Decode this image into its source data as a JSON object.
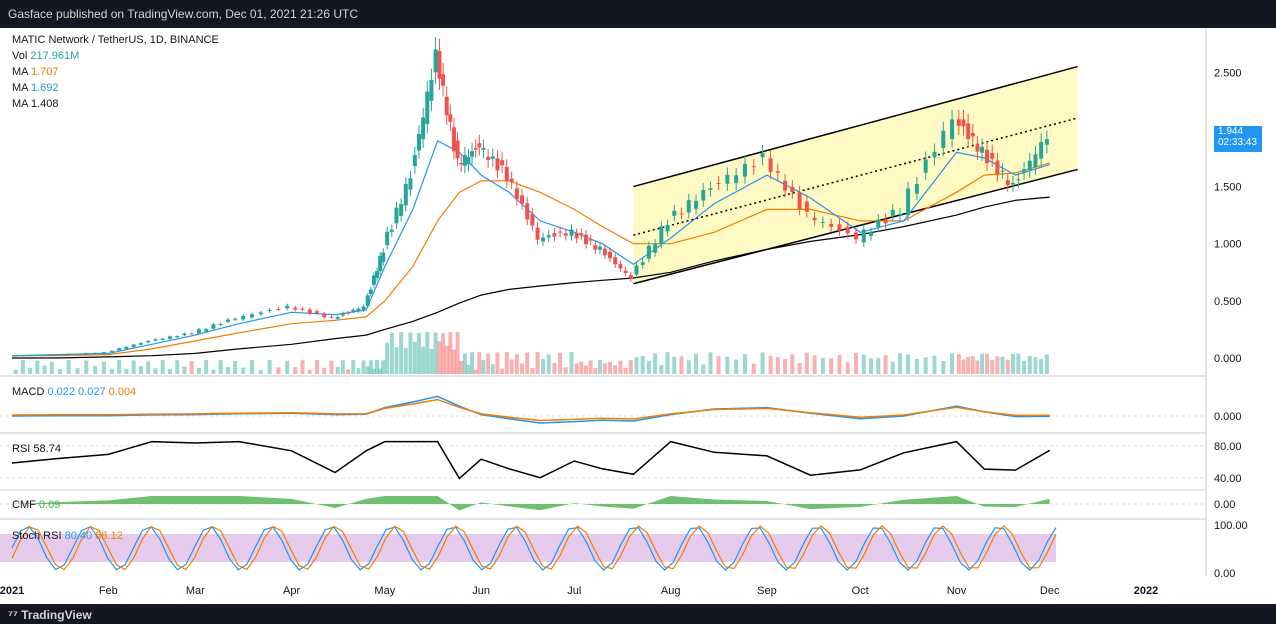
{
  "header": {
    "published": "Gasface published on TradingView.com, Dec 01, 2021 21:26 UTC"
  },
  "footer": {
    "brand": "TradingView"
  },
  "legend": {
    "symbol": "MATIC Network / TetherUS, 1D, BINANCE",
    "vol_label": "Vol",
    "vol_value": "217.961M",
    "ma1_label": "MA",
    "ma1_value": "1.707",
    "ma2_label": "MA",
    "ma2_value": "1.692",
    "ma3_label": "MA",
    "ma3_value": "1.408"
  },
  "indicators": {
    "macd_label": "MACD",
    "macd_v1": "0.022",
    "macd_v2": "0.027",
    "macd_v3": "0.004",
    "rsi_label": "RSI",
    "rsi_value": "58.74",
    "cmf_label": "CMF",
    "cmf_value": "0.09",
    "stoch_label": "Stoch RSI",
    "stoch_v1": "80.40",
    "stoch_v2": "68.12"
  },
  "price_tag": {
    "price": "1.944",
    "countdown": "02:33:43"
  },
  "colors": {
    "background": "#ffffff",
    "up": "#26a69a",
    "down": "#ef5350",
    "ma_fast": "#2196f3",
    "ma_mid": "#f57c00",
    "ma_slow": "#000000",
    "channel_fill": "#fff9c4",
    "stoch_fill": "#e1bee7",
    "cmf": "#4caf50"
  },
  "chart_data": {
    "type": "line",
    "title": "MATIC Network / TetherUS, 1D, BINANCE",
    "x_ticks": [
      "2021",
      "Feb",
      "Mar",
      "Apr",
      "May",
      "Jun",
      "Jul",
      "Aug",
      "Sep",
      "Oct",
      "Nov",
      "Dec",
      "2022"
    ],
    "price_axis": {
      "ticks": [
        "2.500",
        "1.500",
        "1.000",
        "0.500",
        "0.000"
      ],
      "ylim": [
        0,
        2.8
      ]
    },
    "macd_axis": {
      "ticks": [
        "0.000"
      ]
    },
    "rsi_axis": {
      "ticks": [
        "80.00",
        "40.00"
      ]
    },
    "cmf_axis": {
      "ticks": [
        "0.00"
      ]
    },
    "stoch_axis": {
      "ticks": [
        "100.00",
        "0.00"
      ]
    },
    "price_series": {
      "name": "MATIC/USDT",
      "dates": [
        "2021-01-01",
        "2021-01-15",
        "2021-02-01",
        "2021-02-15",
        "2021-03-01",
        "2021-03-15",
        "2021-04-01",
        "2021-04-15",
        "2021-04-25",
        "2021-05-01",
        "2021-05-10",
        "2021-05-18",
        "2021-05-25",
        "2021-06-01",
        "2021-06-10",
        "2021-06-20",
        "2021-07-01",
        "2021-07-10",
        "2021-07-20",
        "2021-08-01",
        "2021-08-15",
        "2021-09-01",
        "2021-09-15",
        "2021-10-01",
        "2021-10-15",
        "2021-11-01",
        "2021-11-10",
        "2021-11-20",
        "2021-12-01"
      ],
      "values": [
        0.02,
        0.03,
        0.05,
        0.15,
        0.22,
        0.35,
        0.45,
        0.35,
        0.45,
        0.95,
        1.6,
        2.65,
        1.7,
        1.85,
        1.6,
        1.05,
        1.1,
        0.95,
        0.7,
        1.2,
        1.5,
        1.75,
        1.25,
        1.05,
        1.3,
        2.1,
        1.8,
        1.5,
        1.944
      ]
    },
    "ma_fast": {
      "values": [
        0.02,
        0.03,
        0.04,
        0.12,
        0.2,
        0.3,
        0.4,
        0.38,
        0.42,
        0.8,
        1.3,
        1.9,
        1.8,
        1.6,
        1.45,
        1.2,
        1.1,
        1.0,
        0.82,
        1.05,
        1.35,
        1.6,
        1.4,
        1.1,
        1.2,
        1.8,
        1.75,
        1.6,
        1.692
      ]
    },
    "ma_mid": {
      "values": [
        0.02,
        0.02,
        0.03,
        0.08,
        0.15,
        0.22,
        0.3,
        0.33,
        0.36,
        0.5,
        0.8,
        1.2,
        1.45,
        1.55,
        1.55,
        1.45,
        1.3,
        1.15,
        1.0,
        1.0,
        1.1,
        1.3,
        1.3,
        1.2,
        1.2,
        1.45,
        1.6,
        1.62,
        1.707
      ]
    },
    "ma_slow": {
      "values": [
        0.0,
        0.0,
        0.01,
        0.02,
        0.04,
        0.08,
        0.12,
        0.17,
        0.2,
        0.25,
        0.32,
        0.4,
        0.48,
        0.55,
        0.6,
        0.63,
        0.66,
        0.68,
        0.7,
        0.75,
        0.85,
        0.95,
        1.02,
        1.08,
        1.15,
        1.25,
        1.32,
        1.38,
        1.408
      ]
    },
    "channel": {
      "start_date": "2021-07-20",
      "end_date": "2021-12-10",
      "lower_start": 0.65,
      "lower_end": 1.65,
      "upper_start": 1.5,
      "upper_end": 2.55
    }
  }
}
